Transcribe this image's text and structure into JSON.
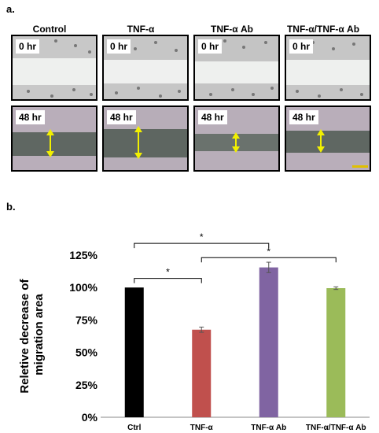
{
  "figure": {
    "panel_a_label": "a.",
    "panel_b_label": "b."
  },
  "panel_a": {
    "columns": [
      "Control",
      "TNF-α",
      "TNF-α Ab",
      "TNF-α/TNF-α Ab"
    ],
    "rows": [
      "0 hr",
      "48 hr"
    ],
    "arrow_color": "#f2f000",
    "scale_bar_color": "#e0c000"
  },
  "chart_data": {
    "type": "bar",
    "categories": [
      "Ctrl",
      "TNF-α",
      "TNF-α Ab",
      "TNF-α/TNF-α Ab"
    ],
    "values": [
      100,
      67.5,
      115.5,
      99.5
    ],
    "errors": [
      0,
      2,
      4,
      1
    ],
    "colors": [
      "#000000",
      "#c0504d",
      "#8064a2",
      "#9bbb59"
    ],
    "ylabel": "Reletive decrease of migration area",
    "yticks": [
      "0%",
      "25%",
      "50%",
      "75%",
      "100%",
      "125%"
    ],
    "ylim": [
      0,
      125
    ],
    "significance": [
      {
        "from": 0,
        "to": 1,
        "label": "*"
      },
      {
        "from": 0,
        "to": 2,
        "label": "*"
      },
      {
        "from": 1,
        "to": 3,
        "label": "*"
      }
    ]
  }
}
